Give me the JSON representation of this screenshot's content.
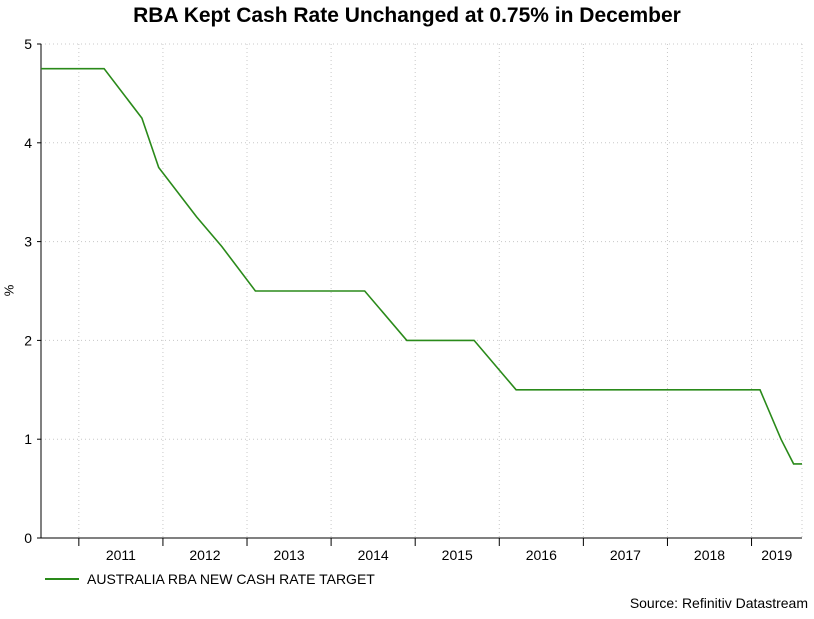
{
  "chart_data": {
    "type": "line",
    "title": "RBA Kept Cash Rate Unchanged at 0.75% in December",
    "xlabel": "",
    "ylabel": "%",
    "ylim": [
      0,
      5
    ],
    "xlim": [
      2010.55,
      2019.6
    ],
    "yticks": [
      0,
      1,
      2,
      3,
      4,
      5
    ],
    "xticks": [
      "2011",
      "2012",
      "2013",
      "2014",
      "2015",
      "2016",
      "2017",
      "2018",
      "2019"
    ],
    "grid": true,
    "legend_position": "bottom-left",
    "series": [
      {
        "name": "AUSTRALIA RBA NEW CASH RATE TARGET",
        "color": "#2a8a1a",
        "points": [
          [
            2010.55,
            4.75
          ],
          [
            2011.3,
            4.75
          ],
          [
            2011.75,
            4.25
          ],
          [
            2011.95,
            3.75
          ],
          [
            2012.4,
            3.25
          ],
          [
            2012.7,
            2.95
          ],
          [
            2013.1,
            2.5
          ],
          [
            2014.4,
            2.5
          ],
          [
            2014.9,
            2.0
          ],
          [
            2015.7,
            2.0
          ],
          [
            2016.2,
            1.5
          ],
          [
            2019.1,
            1.5
          ],
          [
            2019.35,
            1.0
          ],
          [
            2019.5,
            0.75
          ],
          [
            2019.6,
            0.75
          ]
        ]
      }
    ]
  },
  "source": "Source: Refinitiv Datastream"
}
